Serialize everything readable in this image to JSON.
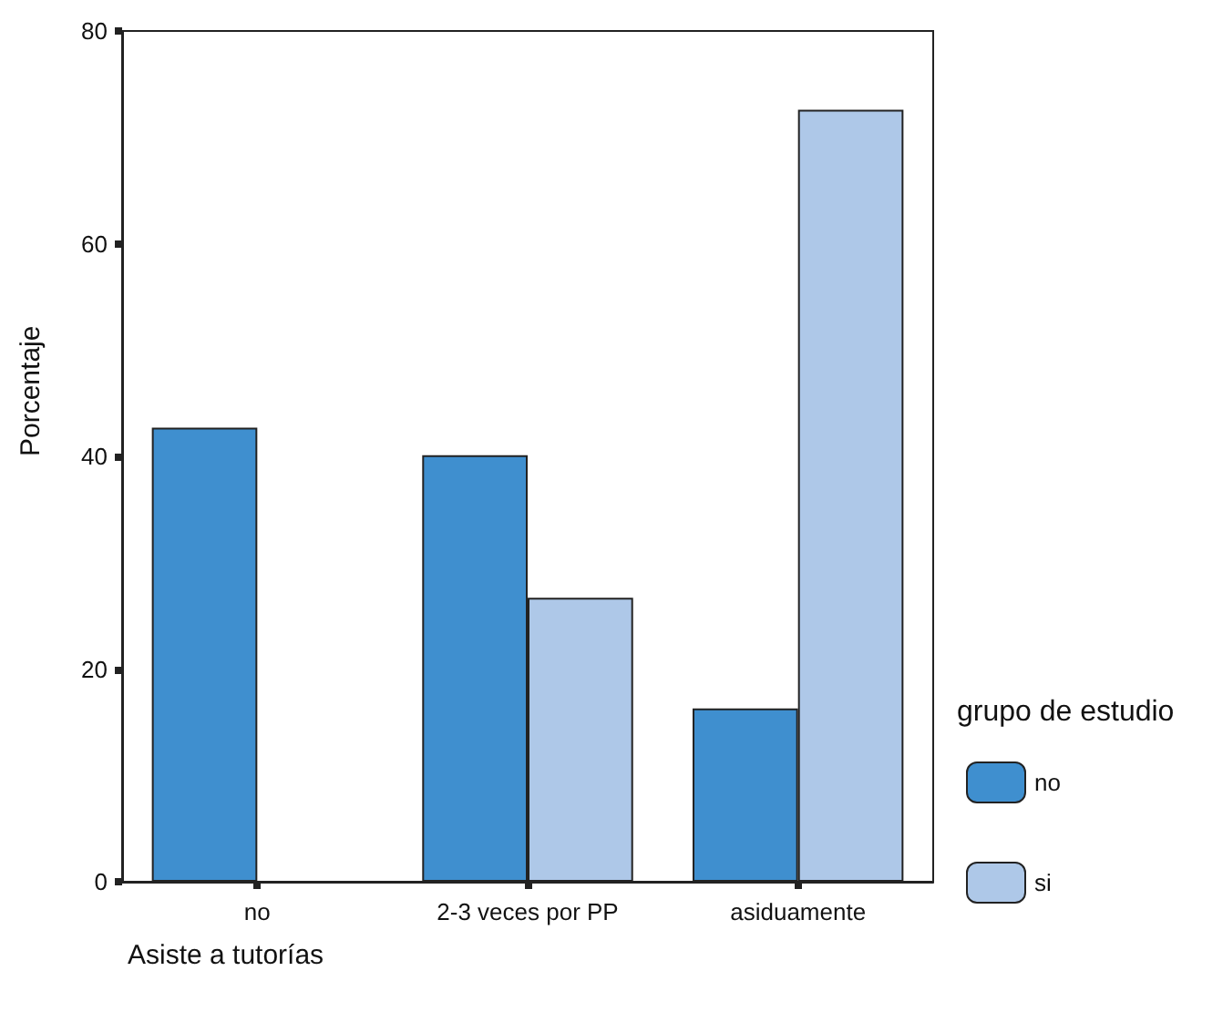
{
  "chart_data": {
    "type": "bar",
    "xlabel": "Asiste a tutorías",
    "ylabel": "Porcentaje",
    "legend_title": "grupo de estudio",
    "categories": [
      "no",
      "2-3 veces por PP",
      "asiduamente"
    ],
    "series": [
      {
        "name": "no",
        "color": "#3f8fcf",
        "values": [
          42.7,
          40.1,
          16.3
        ]
      },
      {
        "name": "si",
        "color": "#aec8e8",
        "values": [
          null,
          26.7,
          72.6
        ]
      }
    ],
    "ylim": [
      0,
      80
    ],
    "yticks": [
      0,
      20,
      40,
      60,
      80
    ],
    "grid": false,
    "legend": "right"
  }
}
